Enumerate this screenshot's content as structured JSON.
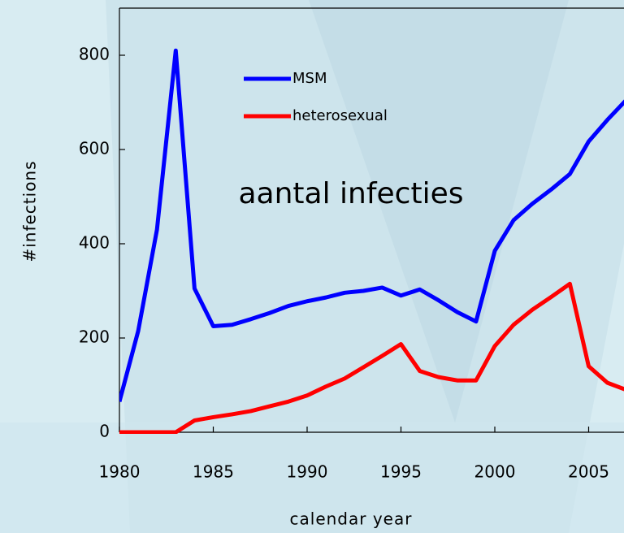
{
  "chart_data": {
    "type": "line",
    "annotation": "aantal infecties",
    "x_label": "calendar year",
    "y_label": "#infections",
    "x": [
      1980,
      1981,
      1982,
      1983,
      1984,
      1985,
      1986,
      1987,
      1988,
      1989,
      1990,
      1991,
      1992,
      1993,
      1994,
      1995,
      1996,
      1997,
      1998,
      1999,
      2000,
      2001,
      2002,
      2003,
      2004,
      2005,
      2006,
      2007
    ],
    "series": [
      {
        "name": "MSM",
        "color": "#0000ff",
        "values": [
          65,
          215,
          430,
          810,
          305,
          225,
          228,
          240,
          253,
          268,
          278,
          286,
          296,
          300,
          307,
          290,
          303,
          280,
          255,
          235,
          385,
          450,
          485,
          515,
          548,
          617,
          663,
          705
        ]
      },
      {
        "name": "heterosexual",
        "color": "#ff0000",
        "values": [
          0,
          0,
          0,
          0,
          25,
          32,
          38,
          45,
          55,
          65,
          78,
          97,
          114,
          138,
          162,
          187,
          130,
          117,
          110,
          110,
          183,
          228,
          260,
          287,
          315,
          140,
          105,
          90
        ]
      }
    ],
    "xlim": [
      1980,
      2007
    ],
    "xticks": [
      1980,
      1985,
      1990,
      1995,
      2000,
      2005
    ],
    "ylim": [
      0,
      900
    ],
    "yticks": [
      0,
      200,
      400,
      600,
      800
    ]
  }
}
